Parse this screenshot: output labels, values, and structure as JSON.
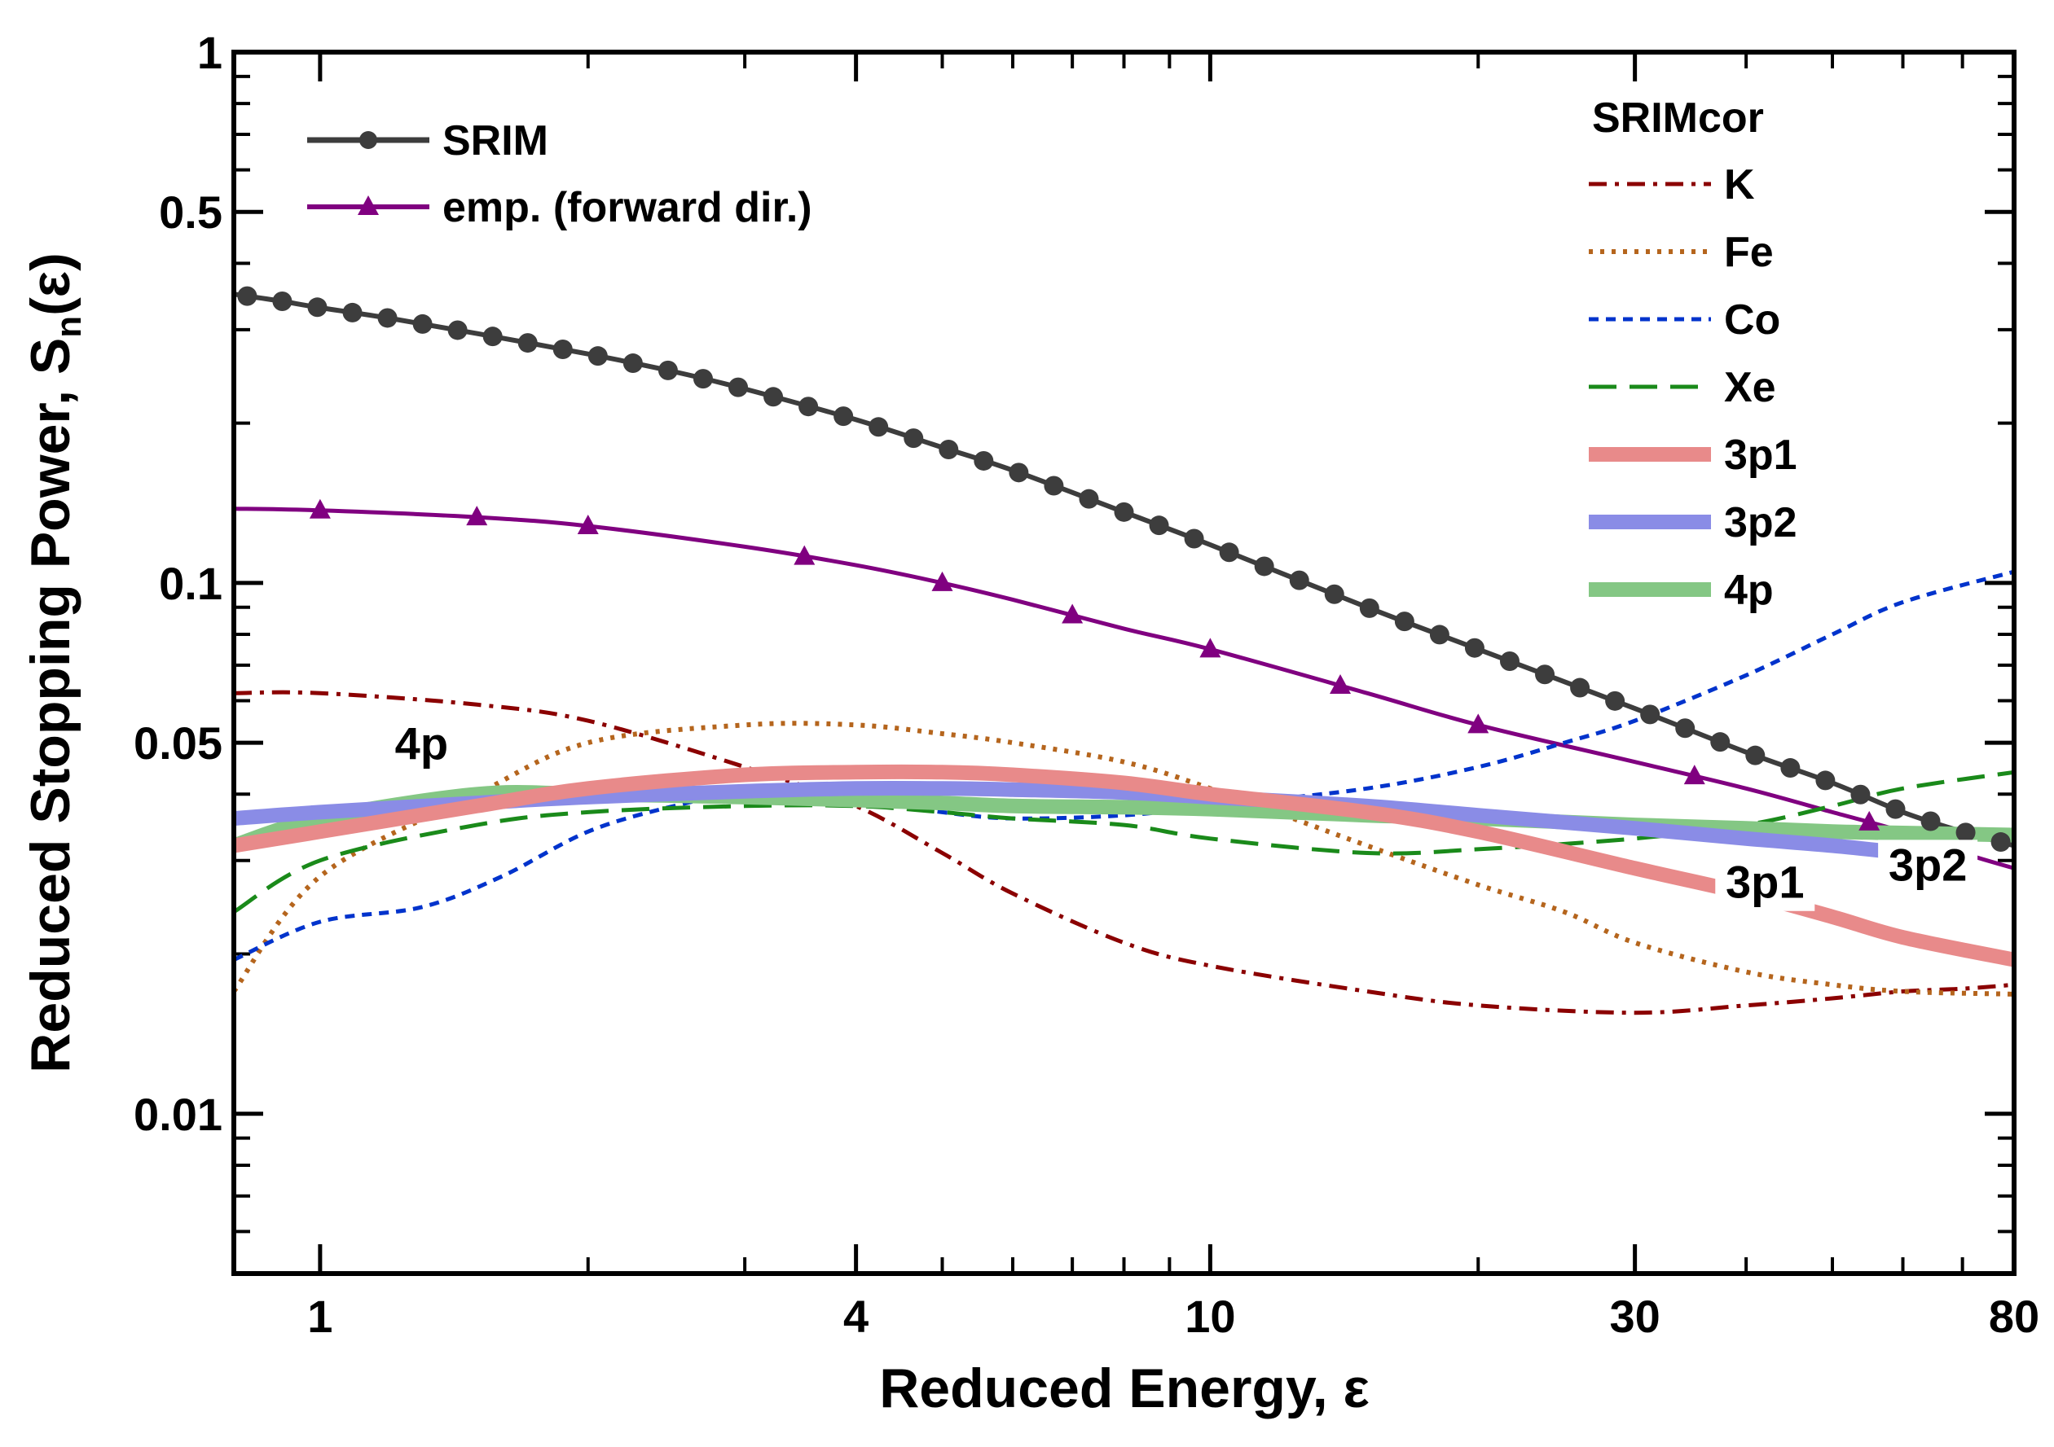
{
  "chart_data": {
    "type": "line",
    "xscale": "log",
    "yscale": "log",
    "xlim": [
      0.8,
      80
    ],
    "ylim": [
      0.005,
      1
    ],
    "xlabel": "Reduced Energy, ε",
    "ylabel_main": "Reduced Stopping Power, S",
    "ylabel_sub": "n",
    "ylabel_tail": "(ε)",
    "x_ticks": [
      {
        "value": 1,
        "label": "1"
      },
      {
        "value": 4,
        "label": "4"
      },
      {
        "value": 10,
        "label": "10"
      },
      {
        "value": 30,
        "label": "30"
      },
      {
        "value": 80,
        "label": "80"
      }
    ],
    "y_ticks": [
      {
        "value": 1,
        "label": "1"
      },
      {
        "value": 0.5,
        "label": "0.5"
      },
      {
        "value": 0.1,
        "label": "0.1"
      },
      {
        "value": 0.05,
        "label": "0.05"
      },
      {
        "value": 0.01,
        "label": "0.01"
      }
    ],
    "legend_left": [
      "SRIM",
      "emp. (forward dir.)"
    ],
    "legend_right_title": "SRIMcor",
    "legend_right": [
      "K",
      "Fe",
      "Co",
      "Xe",
      "3p1",
      "3p2",
      "4p"
    ],
    "annotations": [
      {
        "text": "4p",
        "x": 1.3,
        "y": 0.0465
      },
      {
        "text": "3p1",
        "x": 42,
        "y": 0.0255
      },
      {
        "text": "3p2",
        "x": 64,
        "y": 0.0275
      }
    ],
    "series": [
      {
        "name": "SRIM",
        "color": "#3d3d3d",
        "dash": "",
        "width": 6,
        "marker": "circle",
        "x": [
          0.8,
          0.9,
          1,
          1.2,
          1.5,
          2,
          2.5,
          3,
          4,
          5,
          6,
          8,
          10,
          15,
          20,
          30,
          40,
          50,
          60,
          70,
          80
        ],
        "y": [
          0.35,
          0.34,
          0.33,
          0.315,
          0.295,
          0.27,
          0.25,
          0.232,
          0.203,
          0.18,
          0.163,
          0.136,
          0.118,
          0.09,
          0.075,
          0.058,
          0.048,
          0.042,
          0.037,
          0.034,
          0.032
        ]
      },
      {
        "name": "emp. (forward dir.)",
        "color": "#800080",
        "dash": "",
        "width": 5,
        "marker": "triangle",
        "x": [
          0.8,
          1,
          1.5,
          2,
          3,
          4,
          5,
          6,
          8,
          10,
          15,
          20,
          30,
          40,
          50,
          60,
          70,
          80
        ],
        "y": [
          0.138,
          0.137,
          0.133,
          0.128,
          0.117,
          0.108,
          0.1,
          0.093,
          0.082,
          0.075,
          0.062,
          0.054,
          0.046,
          0.041,
          0.037,
          0.034,
          0.031,
          0.029
        ]
      },
      {
        "name": "K",
        "color": "#8b0000",
        "dash": "22 10 5 10",
        "width": 5,
        "marker": "",
        "x": [
          0.8,
          1,
          1.5,
          2,
          3,
          4,
          5,
          6,
          8,
          10,
          15,
          20,
          30,
          40,
          50,
          60,
          70,
          80
        ],
        "y": [
          0.062,
          0.062,
          0.059,
          0.055,
          0.045,
          0.038,
          0.031,
          0.026,
          0.021,
          0.019,
          0.017,
          0.016,
          0.0155,
          0.016,
          0.0165,
          0.017,
          0.0172,
          0.0175
        ]
      },
      {
        "name": "Fe",
        "color": "#b5651d",
        "dash": "5 9",
        "width": 6,
        "marker": "",
        "x": [
          0.8,
          1,
          1.5,
          2,
          3,
          4,
          5,
          6,
          8,
          10,
          15,
          20,
          25,
          30,
          40,
          50,
          60,
          80
        ],
        "y": [
          0.017,
          0.028,
          0.04,
          0.05,
          0.054,
          0.054,
          0.052,
          0.05,
          0.046,
          0.041,
          0.032,
          0.027,
          0.024,
          0.021,
          0.0185,
          0.0175,
          0.017,
          0.0168
        ]
      },
      {
        "name": "Co",
        "color": "#0033cc",
        "dash": "12 9",
        "width": 5,
        "marker": "",
        "x": [
          0.8,
          1,
          1.3,
          1.6,
          2,
          2.5,
          3,
          4,
          5,
          6,
          8,
          10,
          15,
          20,
          25,
          30,
          40,
          50,
          60,
          80
        ],
        "y": [
          0.0195,
          0.023,
          0.0245,
          0.028,
          0.034,
          0.038,
          0.04,
          0.039,
          0.037,
          0.036,
          0.0365,
          0.038,
          0.041,
          0.045,
          0.05,
          0.055,
          0.067,
          0.08,
          0.092,
          0.105
        ]
      },
      {
        "name": "Xe",
        "color": "#1a8a1a",
        "dash": "34 16",
        "width": 5,
        "marker": "",
        "x": [
          0.8,
          1,
          1.5,
          2,
          3,
          4,
          5,
          6,
          8,
          10,
          15,
          20,
          30,
          40,
          50,
          60,
          80
        ],
        "y": [
          0.024,
          0.03,
          0.035,
          0.037,
          0.038,
          0.038,
          0.037,
          0.036,
          0.035,
          0.033,
          0.031,
          0.0315,
          0.033,
          0.035,
          0.038,
          0.041,
          0.044
        ]
      },
      {
        "name": "4p",
        "color": "#84c784",
        "dash": "",
        "width": 18,
        "marker": "",
        "x": [
          0.8,
          1,
          1.5,
          2,
          3,
          4,
          5,
          6,
          8,
          10,
          15,
          20,
          30,
          40,
          50,
          60,
          80
        ],
        "y": [
          0.032,
          0.036,
          0.04,
          0.04,
          0.0395,
          0.039,
          0.0385,
          0.038,
          0.0378,
          0.0375,
          0.0365,
          0.036,
          0.035,
          0.0345,
          0.034,
          0.0338,
          0.0335
        ]
      },
      {
        "name": "3p2",
        "color": "#8a8ce6",
        "dash": "",
        "width": 18,
        "marker": "",
        "x": [
          0.8,
          1,
          1.5,
          2,
          3,
          4,
          5,
          6,
          8,
          10,
          15,
          20,
          30,
          40,
          50,
          60
        ],
        "y": [
          0.036,
          0.037,
          0.0385,
          0.0395,
          0.0405,
          0.041,
          0.041,
          0.0408,
          0.0403,
          0.0395,
          0.038,
          0.0365,
          0.0345,
          0.033,
          0.032,
          0.031
        ]
      },
      {
        "name": "3p1",
        "color": "#e88a8a",
        "dash": "",
        "width": 18,
        "marker": "",
        "x": [
          0.8,
          1,
          1.5,
          2,
          3,
          4,
          5,
          6,
          8,
          10,
          15,
          20,
          30,
          40,
          50,
          60,
          80
        ],
        "y": [
          0.032,
          0.034,
          0.038,
          0.041,
          0.0435,
          0.044,
          0.044,
          0.0435,
          0.042,
          0.04,
          0.037,
          0.034,
          0.029,
          0.026,
          0.0235,
          0.0215,
          0.0195
        ]
      }
    ]
  }
}
